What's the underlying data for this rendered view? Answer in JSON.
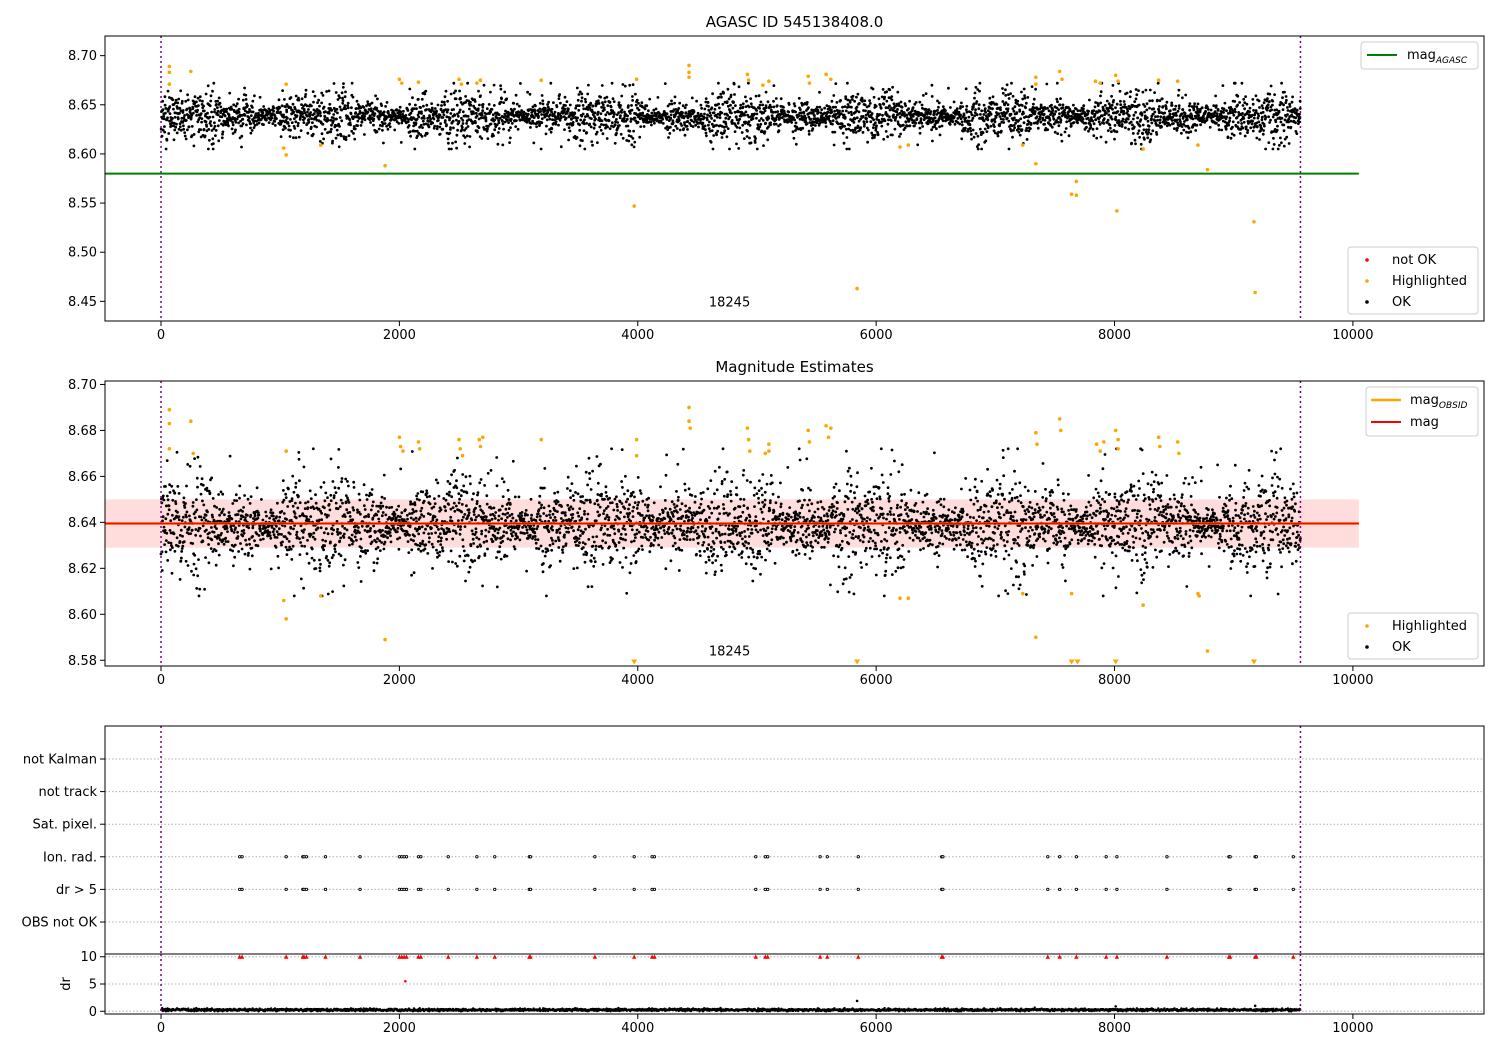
{
  "chart_data": [
    {
      "type": "scatter",
      "title": "AGASC ID 545138408.0",
      "xlim": [
        -470,
        11100
      ],
      "ylim": [
        8.43,
        8.72
      ],
      "xticks": [
        0,
        2000,
        4000,
        6000,
        8000,
        10000
      ],
      "yticks": [
        8.45,
        8.5,
        8.55,
        8.6,
        8.65,
        8.7
      ],
      "x_range": [
        0,
        9560
      ],
      "vlines": [
        0,
        9560
      ],
      "obsid_label": {
        "text": "18245",
        "x": 4770,
        "y": 8.445
      },
      "series": [
        {
          "name": "OK",
          "color": "#000000",
          "center": 8.638,
          "spread": 0.011,
          "x_range": [
            0,
            9560
          ]
        },
        {
          "name": "Highlighted",
          "color": "#ffa500",
          "points": [
            [
              70,
              8.689
            ],
            [
              70,
              8.683
            ],
            [
              70,
              8.671
            ],
            [
              250,
              8.684
            ],
            [
              1050,
              8.671
            ],
            [
              1030,
              8.606
            ],
            [
              1050,
              8.599
            ],
            [
              1340,
              8.609
            ],
            [
              1880,
              8.588
            ],
            [
              2000,
              8.676
            ],
            [
              2020,
              8.672
            ],
            [
              2160,
              8.673
            ],
            [
              2500,
              8.676
            ],
            [
              2520,
              8.671
            ],
            [
              2680,
              8.675
            ],
            [
              2650,
              8.672
            ],
            [
              3190,
              8.675
            ],
            [
              3970,
              8.547
            ],
            [
              3990,
              8.676
            ],
            [
              4430,
              8.69
            ],
            [
              4430,
              8.683
            ],
            [
              4430,
              8.678
            ],
            [
              4920,
              8.681
            ],
            [
              4930,
              8.675
            ],
            [
              5050,
              8.67
            ],
            [
              5100,
              8.674
            ],
            [
              5430,
              8.679
            ],
            [
              5440,
              8.672
            ],
            [
              5580,
              8.681
            ],
            [
              5620,
              8.676
            ],
            [
              5840,
              8.463
            ],
            [
              6200,
              8.607
            ],
            [
              6270,
              8.609
            ],
            [
              7230,
              8.609
            ],
            [
              7340,
              8.678
            ],
            [
              7340,
              8.671
            ],
            [
              7340,
              8.59
            ],
            [
              7540,
              8.684
            ],
            [
              7560,
              8.676
            ],
            [
              7640,
              8.559
            ],
            [
              7680,
              8.558
            ],
            [
              7680,
              8.572
            ],
            [
              7840,
              8.674
            ],
            [
              7880,
              8.672
            ],
            [
              8010,
              8.68
            ],
            [
              8030,
              8.674
            ],
            [
              8020,
              8.542
            ],
            [
              8240,
              8.605
            ],
            [
              8370,
              8.675
            ],
            [
              8530,
              8.674
            ],
            [
              8700,
              8.609
            ],
            [
              8780,
              8.584
            ],
            [
              9170,
              8.531
            ],
            [
              9180,
              8.459
            ]
          ]
        },
        {
          "name": "not OK",
          "color": "#ff0000",
          "points": []
        },
        {
          "name": "mag_AGASC",
          "color": "#008000",
          "y": 8.58,
          "x_range": [
            -470,
            10050
          ]
        }
      ],
      "legend": [
        {
          "position": "top-right",
          "entries": [
            {
              "label": "mag",
              "sub": "AGASC",
              "color": "#008000",
              "kind": "line"
            }
          ]
        },
        {
          "position": "bottom-right",
          "entries": [
            {
              "label": "not OK",
              "color": "#ff0000",
              "kind": "marker"
            },
            {
              "label": "Highlighted",
              "color": "#ffa500",
              "kind": "marker"
            },
            {
              "label": "OK",
              "color": "#000000",
              "kind": "marker"
            }
          ]
        }
      ]
    },
    {
      "type": "scatter",
      "title": "Magnitude Estimates",
      "xlim": [
        -470,
        11100
      ],
      "ylim": [
        8.5775,
        8.7015
      ],
      "xticks": [
        0,
        2000,
        4000,
        6000,
        8000,
        10000
      ],
      "yticks": [
        8.58,
        8.6,
        8.62,
        8.64,
        8.66,
        8.68,
        8.7
      ],
      "vlines": [
        0,
        9560
      ],
      "obsid_label": {
        "text": "18245",
        "x": 4770,
        "y": 8.582
      },
      "band": {
        "y1": 8.629,
        "y2": 8.65,
        "x_range": [
          -470,
          10050
        ],
        "color": "#ffd2d2"
      },
      "series": [
        {
          "name": "OK",
          "color": "#000000",
          "center": 8.639,
          "spread": 0.0095,
          "x_range": [
            0,
            9560
          ]
        },
        {
          "name": "Highlighted",
          "color": "#ffa500",
          "points": [
            [
              70,
              8.689
            ],
            [
              70,
              8.683
            ],
            [
              70,
              8.672
            ],
            [
              250,
              8.684
            ],
            [
              270,
              8.67
            ],
            [
              1050,
              8.671
            ],
            [
              1030,
              8.606
            ],
            [
              1050,
              8.598
            ],
            [
              1340,
              8.608
            ],
            [
              1880,
              8.589
            ],
            [
              2000,
              8.677
            ],
            [
              2010,
              8.673
            ],
            [
              2030,
              8.671
            ],
            [
              2160,
              8.675
            ],
            [
              2170,
              8.672
            ],
            [
              2500,
              8.676
            ],
            [
              2510,
              8.672
            ],
            [
              2530,
              8.669
            ],
            [
              2670,
              8.676
            ],
            [
              2680,
              8.673
            ],
            [
              2700,
              8.677
            ],
            [
              3190,
              8.676
            ],
            [
              3990,
              8.676
            ],
            [
              3990,
              8.669
            ],
            [
              4430,
              8.69
            ],
            [
              4430,
              8.684
            ],
            [
              4440,
              8.681
            ],
            [
              4920,
              8.681
            ],
            [
              4930,
              8.676
            ],
            [
              4940,
              8.671
            ],
            [
              5070,
              8.67
            ],
            [
              5100,
              8.674
            ],
            [
              5100,
              8.671
            ],
            [
              5430,
              8.68
            ],
            [
              5440,
              8.675
            ],
            [
              5580,
              8.682
            ],
            [
              5600,
              8.677
            ],
            [
              5620,
              8.681
            ],
            [
              6200,
              8.607
            ],
            [
              6270,
              8.607
            ],
            [
              7230,
              8.609
            ],
            [
              7340,
              8.679
            ],
            [
              7350,
              8.674
            ],
            [
              7340,
              8.59
            ],
            [
              7540,
              8.685
            ],
            [
              7550,
              8.68
            ],
            [
              7640,
              8.609
            ],
            [
              7850,
              8.674
            ],
            [
              7880,
              8.671
            ],
            [
              7910,
              8.675
            ],
            [
              8010,
              8.68
            ],
            [
              8030,
              8.676
            ],
            [
              8030,
              8.672
            ],
            [
              8240,
              8.604
            ],
            [
              8370,
              8.677
            ],
            [
              8380,
              8.673
            ],
            [
              8530,
              8.675
            ],
            [
              8540,
              8.67
            ],
            [
              8700,
              8.609
            ],
            [
              8710,
              8.608
            ],
            [
              8780,
              8.584
            ]
          ]
        },
        {
          "name": "offscale",
          "color": "#ffa500",
          "points": [
            [
              3970,
              8.579
            ],
            [
              5840,
              8.579
            ],
            [
              7640,
              8.579
            ],
            [
              7690,
              8.579
            ],
            [
              8010,
              8.579
            ],
            [
              9170,
              8.579
            ]
          ]
        },
        {
          "name": "mag_OBSID",
          "color": "#ffa500",
          "y": 8.6395,
          "x_range": [
            -470,
            10050
          ]
        },
        {
          "name": "mag",
          "color": "#ff0000",
          "y": 8.6395,
          "x_range": [
            -470,
            10050
          ]
        }
      ],
      "legend": [
        {
          "position": "top-right",
          "entries": [
            {
              "label": "mag",
              "sub": "OBSID",
              "color": "#ffa500",
              "kind": "line"
            },
            {
              "label": "mag",
              "color": "#ff0000",
              "kind": "line"
            }
          ]
        },
        {
          "position": "bottom-right",
          "entries": [
            {
              "label": "Highlighted",
              "color": "#ffa500",
              "kind": "marker"
            },
            {
              "label": "OK",
              "color": "#000000",
              "kind": "marker"
            }
          ]
        }
      ]
    },
    {
      "type": "scatter",
      "title": "",
      "xlim": [
        -470,
        11100
      ],
      "vlines": [
        0,
        9560
      ],
      "categories": [
        "not Kalman",
        "not track",
        "Sat. pixel.",
        "Ion. rad.",
        "dr > 5",
        "OBS not OK"
      ],
      "flag_x": [
        660,
        680,
        1050,
        1190,
        1200,
        1220,
        1380,
        1670,
        2000,
        2020,
        2040,
        2060,
        2160,
        2180,
        2410,
        2650,
        2800,
        3090,
        3100,
        3640,
        3970,
        4120,
        4140,
        4990,
        5070,
        5090,
        5530,
        5590,
        5850,
        6550,
        6560,
        7440,
        7540,
        7680,
        7930,
        8020,
        8440,
        8960,
        8970,
        9180,
        9190,
        9500
      ]
    },
    {
      "type": "scatter",
      "title": "",
      "ylabel": "dr",
      "xlim": [
        -470,
        11100
      ],
      "ylim": [
        -0.5,
        10.5
      ],
      "yticks": [
        0,
        5,
        10
      ],
      "xticks": [
        0,
        2000,
        4000,
        6000,
        8000,
        10000
      ],
      "vlines": [
        0,
        9560
      ],
      "series": [
        {
          "name": "dr",
          "color": "#000000",
          "center": 0.25,
          "spread": 0.2,
          "x_range": [
            0,
            9560
          ],
          "extra": [
            [
              5840,
              1.9
            ],
            [
              8010,
              0.9
            ],
            [
              9180,
              1.0
            ]
          ]
        },
        {
          "name": "dr_capped",
          "color": "#ff0000",
          "y": 10,
          "extra": [
            [
              2050,
              5.5
            ]
          ]
        }
      ]
    }
  ]
}
